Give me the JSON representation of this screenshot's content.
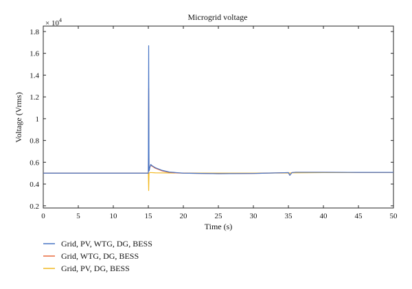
{
  "chart_data": {
    "type": "line",
    "title": "Microgrid voltage",
    "xlabel": "Time (s)",
    "ylabel": "Voltage (Vrms)",
    "y_multiplier": {
      "base": "× 10",
      "exponent": "4"
    },
    "xlim": [
      0,
      50
    ],
    "ylim": [
      0.18,
      1.85
    ],
    "x_ticks": [
      0,
      5,
      10,
      15,
      20,
      25,
      30,
      35,
      40,
      45,
      50
    ],
    "x_tick_labels": [
      "0",
      "5",
      "10",
      "15",
      "20",
      "25",
      "30",
      "35",
      "40",
      "45",
      "50"
    ],
    "y_ticks": [
      0.2,
      0.4,
      0.6,
      0.8,
      1.0,
      1.2,
      1.4,
      1.6,
      1.8
    ],
    "y_tick_labels": [
      "0.2",
      "0.4",
      "0.6",
      "0.8",
      "1",
      "1.2",
      "1.4",
      "1.6",
      "1.8"
    ],
    "grid": false,
    "legend_position": "bottom-left",
    "series": [
      {
        "name": "Grid, PV, WTG, DG, BESS",
        "color": "#4472c4",
        "x": [
          0,
          15.0,
          15.05,
          15.1,
          15.15,
          15.2,
          15.35,
          15.5,
          16.0,
          17.0,
          18.0,
          19.0,
          20.0,
          25.0,
          30.0,
          35.0,
          35.2,
          35.5,
          36.0,
          40.0,
          45.0,
          50.0
        ],
        "y": [
          0.5,
          0.5,
          1.67,
          0.52,
          0.53,
          0.55,
          0.58,
          0.57,
          0.55,
          0.525,
          0.51,
          0.505,
          0.5,
          0.495,
          0.497,
          0.505,
          0.48,
          0.505,
          0.508,
          0.508,
          0.507,
          0.507
        ]
      },
      {
        "name": "Grid, WTG, DG, BESS",
        "color": "#e8693a",
        "x": [
          0,
          15.0,
          15.05,
          15.1,
          15.15,
          15.2,
          15.35,
          15.5,
          16.0,
          17.0,
          18.0,
          19.0,
          20.0,
          25.0,
          30.0,
          35.0,
          35.2,
          35.5,
          36.0,
          40.0,
          45.0,
          50.0
        ],
        "y": [
          0.5,
          0.5,
          1.28,
          0.52,
          0.53,
          0.55,
          0.575,
          0.565,
          0.545,
          0.52,
          0.507,
          0.502,
          0.5,
          0.495,
          0.497,
          0.505,
          0.48,
          0.505,
          0.508,
          0.508,
          0.507,
          0.507
        ]
      },
      {
        "name": "Grid, PV, DG, BESS",
        "color": "#f2b820",
        "x": [
          0,
          15.0,
          15.05,
          15.1,
          15.2,
          15.5,
          16.0,
          20.0,
          25.0,
          30.0,
          35.0,
          35.2,
          35.5,
          40.0,
          45.0,
          50.0
        ],
        "y": [
          0.5,
          0.5,
          0.34,
          0.5,
          0.505,
          0.505,
          0.503,
          0.501,
          0.5,
          0.5,
          0.502,
          0.5,
          0.503,
          0.505,
          0.505,
          0.505
        ]
      }
    ]
  }
}
